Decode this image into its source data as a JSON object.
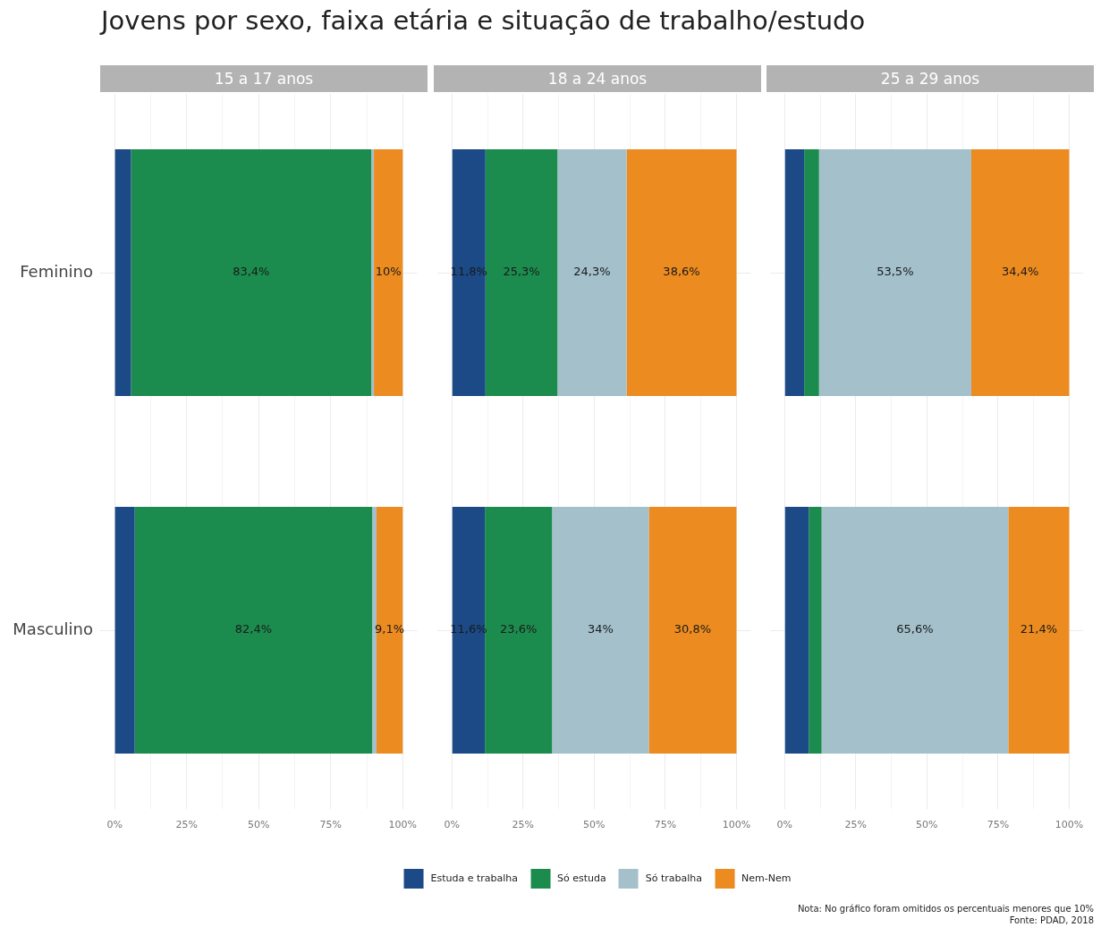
{
  "chart_data": [
    {
      "type": "bar",
      "orientation": "horizontal",
      "stacked": true,
      "title": "Jovens por sexo, faixa etária e situação de trabalho/estudo",
      "subtitle": "15 a 17 anos",
      "categories": [
        "Feminino",
        "Masculino"
      ],
      "xlim": [
        -5,
        105
      ],
      "xticks": [
        {
          "value": 0,
          "label": "0%"
        },
        {
          "value": 12.5,
          "label": null
        },
        {
          "value": 25,
          "label": "25%"
        },
        {
          "value": 37.5,
          "label": null
        },
        {
          "value": 50,
          "label": "50%"
        },
        {
          "value": 62.5,
          "label": null
        },
        {
          "value": 75,
          "label": "75%"
        },
        {
          "value": 87.5,
          "label": null
        },
        {
          "value": 100,
          "label": "100%"
        }
      ],
      "grid": true,
      "series": [
        {
          "color": "#1b4a86",
          "values": [
            5.7,
            7
          ],
          "value_labels": [
            null,
            null
          ]
        },
        {
          "color": "#1c8c4e",
          "values": [
            83.4,
            82.4
          ],
          "value_labels": [
            "83,4%",
            "82,4%"
          ]
        },
        {
          "color": "#a3c0cb",
          "values": [
            0.9,
            1.5
          ],
          "value_labels": [
            null,
            null
          ]
        },
        {
          "color": "#ec8b1f",
          "values": [
            10,
            9.1
          ],
          "value_labels": [
            "10%",
            "9,1%"
          ]
        }
      ]
    },
    {
      "type": "bar",
      "orientation": "horizontal",
      "stacked": true,
      "subtitle": "18 a 24 anos",
      "categories": [
        null,
        null
      ],
      "xlim": [
        -5,
        105
      ],
      "xticks": [
        {
          "value": 0,
          "label": "0%"
        },
        {
          "value": 12.5,
          "label": null
        },
        {
          "value": 25,
          "label": "25%"
        },
        {
          "value": 37.5,
          "label": null
        },
        {
          "value": 50,
          "label": "50%"
        },
        {
          "value": 62.5,
          "label": null
        },
        {
          "value": 75,
          "label": "75%"
        },
        {
          "value": 87.5,
          "label": null
        },
        {
          "value": 100,
          "label": "100%"
        }
      ],
      "grid": true,
      "tick_labels": "x",
      "legend": "bottom",
      "series": [
        {
          "name": "Estuda e trabalha",
          "color": "#1b4a86",
          "values": [
            11.8,
            11.6
          ],
          "value_labels": [
            "11,8%",
            "11,6%"
          ]
        },
        {
          "name": "Só estuda",
          "color": "#1c8c4e",
          "values": [
            25.3,
            23.6
          ],
          "value_labels": [
            "25,3%",
            "23,6%"
          ]
        },
        {
          "name": "Só trabalha",
          "color": "#a3c0cb",
          "values": [
            24.3,
            34
          ],
          "value_labels": [
            "24,3%",
            "34%"
          ]
        },
        {
          "name": "Nem-Nem",
          "color": "#ec8b1f",
          "values": [
            38.6,
            30.8
          ],
          "value_labels": [
            "38,6%",
            "30,8%"
          ]
        }
      ]
    },
    {
      "type": "bar",
      "orientation": "horizontal",
      "stacked": true,
      "subtitle": "25 a 29 anos",
      "categories": [
        null,
        null
      ],
      "xlim": [
        -5,
        105
      ],
      "xticks": [
        {
          "value": 0,
          "label": "0%"
        },
        {
          "value": 12.5,
          "label": null
        },
        {
          "value": 25,
          "label": "25%"
        },
        {
          "value": 37.5,
          "label": null
        },
        {
          "value": 50,
          "label": "50%"
        },
        {
          "value": 62.5,
          "label": null
        },
        {
          "value": 75,
          "label": "75%"
        },
        {
          "value": 87.5,
          "label": null
        },
        {
          "value": 100,
          "label": "100%"
        }
      ],
      "grid": true,
      "tick_labels": "x",
      "annotations": [
        "Nota: No gráfico foram omitidos os percentuais menores que 10%",
        "Fonte: PDAD, 2018"
      ],
      "series": [
        {
          "color": "#1b4a86",
          "values": [
            6.9,
            8.5
          ],
          "value_labels": [
            null,
            null
          ]
        },
        {
          "color": "#1c8c4e",
          "values": [
            5.2,
            4.5
          ],
          "value_labels": [
            null,
            null
          ]
        },
        {
          "color": "#a3c0cb",
          "values": [
            53.5,
            65.6
          ],
          "value_labels": [
            "53,5%",
            "65,6%"
          ]
        },
        {
          "color": "#ec8b1f",
          "values": [
            34.4,
            21.4
          ],
          "value_labels": [
            "34,4%",
            "21,4%"
          ]
        }
      ]
    }
  ]
}
